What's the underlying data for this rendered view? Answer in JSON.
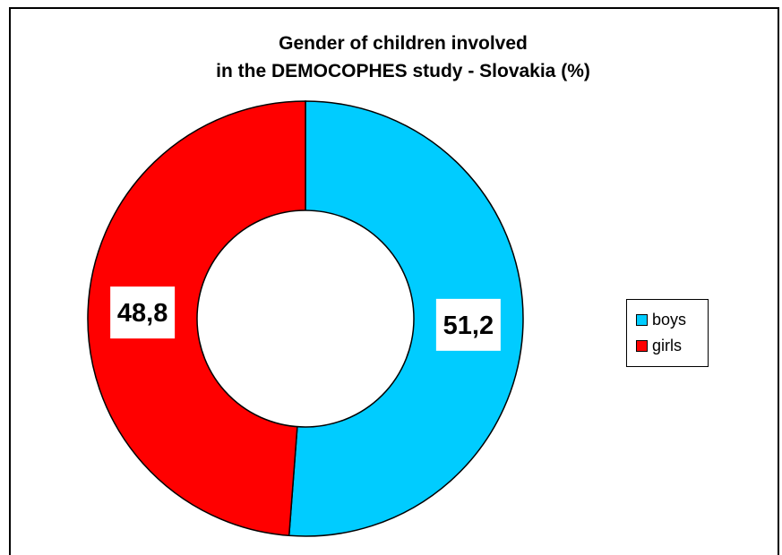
{
  "chart_data": {
    "type": "pie",
    "style": "donut",
    "title_lines": [
      "Gender of children involved",
      "in the DEMOCOPHES study - Slovakia (%)"
    ],
    "series": [
      {
        "name": "boys",
        "value": 51.2,
        "label": "51,2",
        "color": "#00CCFF"
      },
      {
        "name": "girls",
        "value": 48.8,
        "label": "48,8",
        "color": "#FF0000"
      }
    ],
    "legend": {
      "position": "right",
      "items": [
        "boys",
        "girls"
      ]
    }
  }
}
